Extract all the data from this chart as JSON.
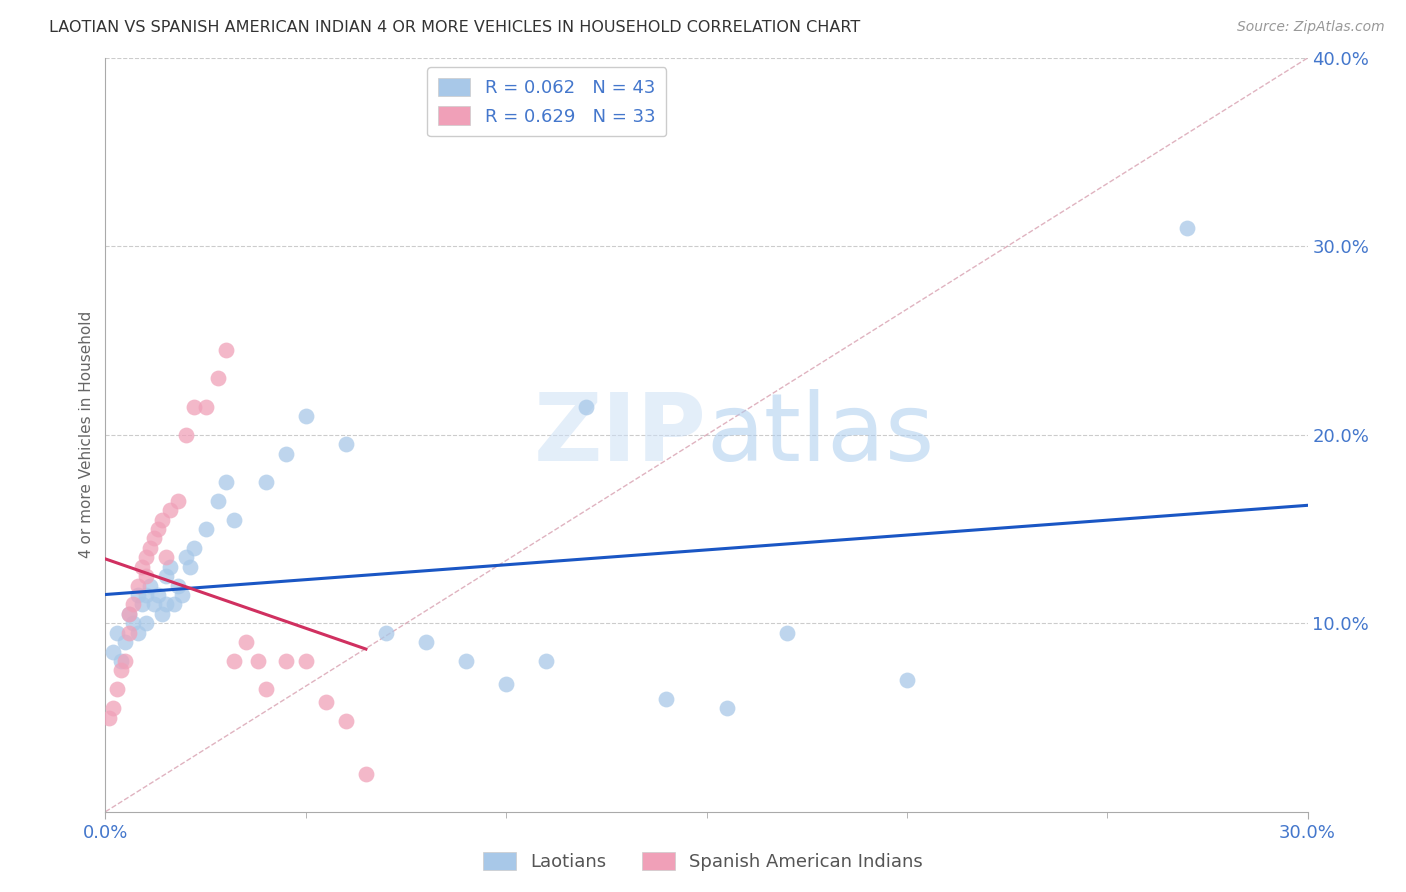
{
  "title": "LAOTIAN VS SPANISH AMERICAN INDIAN 4 OR MORE VEHICLES IN HOUSEHOLD CORRELATION CHART",
  "source": "Source: ZipAtlas.com",
  "ylabel": "4 or more Vehicles in Household",
  "xlim": [
    0.0,
    0.3
  ],
  "ylim": [
    0.0,
    0.4
  ],
  "laotian_R": 0.062,
  "laotian_N": 43,
  "spanish_R": 0.629,
  "spanish_N": 33,
  "laotian_color": "#a8c8e8",
  "spanish_color": "#f0a0b8",
  "laotian_trend_color": "#1a56c4",
  "spanish_trend_color": "#d03060",
  "diagonal_color": "#d8a0b0",
  "background_color": "#ffffff",
  "watermark_zip": "ZIP",
  "watermark_atlas": "atlas",
  "laotian_x": [
    0.002,
    0.003,
    0.004,
    0.005,
    0.006,
    0.007,
    0.008,
    0.008,
    0.009,
    0.01,
    0.01,
    0.011,
    0.012,
    0.013,
    0.014,
    0.015,
    0.015,
    0.016,
    0.017,
    0.018,
    0.019,
    0.02,
    0.021,
    0.022,
    0.025,
    0.028,
    0.03,
    0.032,
    0.04,
    0.045,
    0.05,
    0.06,
    0.07,
    0.08,
    0.09,
    0.1,
    0.11,
    0.12,
    0.14,
    0.155,
    0.17,
    0.2,
    0.27
  ],
  "laotian_y": [
    0.085,
    0.095,
    0.08,
    0.09,
    0.105,
    0.1,
    0.115,
    0.095,
    0.11,
    0.115,
    0.1,
    0.12,
    0.11,
    0.115,
    0.105,
    0.125,
    0.11,
    0.13,
    0.11,
    0.12,
    0.115,
    0.135,
    0.13,
    0.14,
    0.15,
    0.165,
    0.175,
    0.155,
    0.175,
    0.19,
    0.21,
    0.195,
    0.095,
    0.09,
    0.08,
    0.068,
    0.08,
    0.215,
    0.06,
    0.055,
    0.095,
    0.07,
    0.31
  ],
  "spanish_x": [
    0.001,
    0.002,
    0.003,
    0.004,
    0.005,
    0.006,
    0.006,
    0.007,
    0.008,
    0.009,
    0.01,
    0.01,
    0.011,
    0.012,
    0.013,
    0.014,
    0.015,
    0.016,
    0.018,
    0.02,
    0.022,
    0.025,
    0.028,
    0.03,
    0.032,
    0.035,
    0.038,
    0.04,
    0.045,
    0.05,
    0.055,
    0.06,
    0.065
  ],
  "spanish_y": [
    0.05,
    0.055,
    0.065,
    0.075,
    0.08,
    0.095,
    0.105,
    0.11,
    0.12,
    0.13,
    0.125,
    0.135,
    0.14,
    0.145,
    0.15,
    0.155,
    0.135,
    0.16,
    0.165,
    0.2,
    0.215,
    0.215,
    0.23,
    0.245,
    0.08,
    0.09,
    0.08,
    0.065,
    0.08,
    0.08,
    0.058,
    0.048,
    0.02
  ]
}
